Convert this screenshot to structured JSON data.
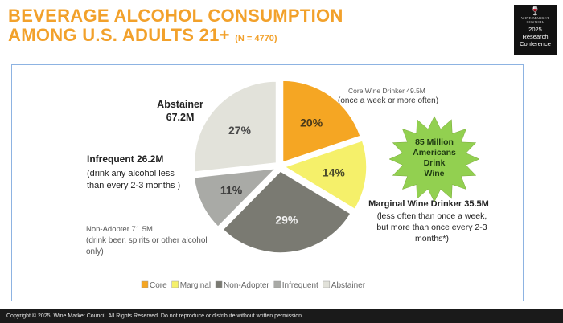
{
  "header": {
    "title_line1": "BEVERAGE ALCOHOL CONSUMPTION",
    "title_line2": "AMONG U.S.  ADULTS 21+",
    "sample_size": "(N = 4770)"
  },
  "logo": {
    "brand": "WINE MARKET COUNCIL",
    "year": "2025",
    "event_line1": "Research",
    "event_line2": "Conference"
  },
  "callouts": {
    "abstainer_name": "Abstainer",
    "abstainer_value": "67.2M",
    "core_name": "Core Wine Drinker 49.5M",
    "core_desc": "(once a week or more often)",
    "infrequent_name": "Infrequent 26.2M",
    "infrequent_desc1": "(drink any alcohol less",
    "infrequent_desc2": "than every 2-3 months )",
    "nonadopter_name": "Non-Adopter 71.5M",
    "nonadopter_desc1": "(drink beer, spirits or other alcohol",
    "nonadopter_desc2": "only)",
    "marginal_name": "Marginal Wine Drinker 35.5M",
    "marginal_desc1": "(less often than once a week,",
    "marginal_desc2": "but more than once every 2-3",
    "marginal_desc3": "months*)"
  },
  "starburst": {
    "line1": "85 Million",
    "line2": "Americans",
    "line3": "Drink",
    "line4": "Wine",
    "color": "#92d050"
  },
  "footer": {
    "text": "Copyright © 2025.  Wine Market Council. All Rights Reserved. Do not reproduce or distribute without written permission."
  },
  "chart_data": {
    "type": "pie",
    "start_angle_deg": 0,
    "legend_position": "bottom",
    "slices": [
      {
        "name": "Core",
        "value": 20,
        "label": "20%",
        "color": "#f5a623",
        "text_color": "#4a3a1a"
      },
      {
        "name": "Marginal",
        "value": 14,
        "label": "14%",
        "color": "#f5f06a",
        "text_color": "#4a4a2a"
      },
      {
        "name": "Non-Adopter",
        "value": 29,
        "label": "29%",
        "color": "#7a7a72",
        "text_color": "#f2f2f2"
      },
      {
        "name": "Infrequent",
        "value": 11,
        "label": "11%",
        "color": "#a9aaa6",
        "text_color": "#3a3a3a"
      },
      {
        "name": "Abstainer",
        "value": 27,
        "label": "27%",
        "color": "#e2e2da",
        "text_color": "#4a4a4a"
      }
    ]
  }
}
